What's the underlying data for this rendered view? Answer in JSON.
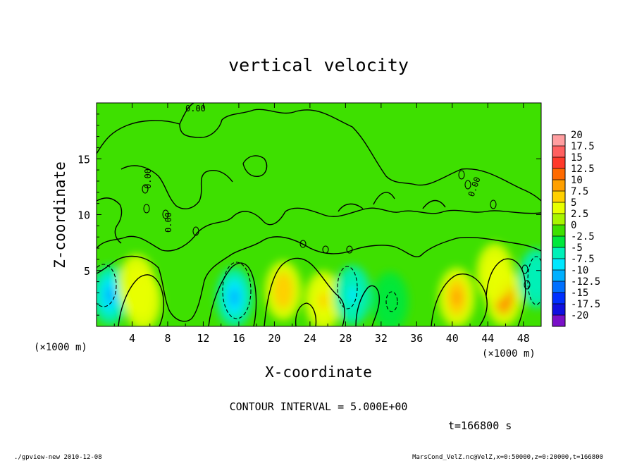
{
  "title": "vertical velocity",
  "chart_data": {
    "type": "heatmap",
    "title": "vertical velocity",
    "xlabel": "X-coordinate",
    "ylabel": "Z-coordinate",
    "x_unit": "(×1000 m)",
    "z_unit": "(×1000 m)",
    "xlim": [
      0,
      50
    ],
    "ylim": [
      0,
      20
    ],
    "x_ticks": [
      "4",
      "8",
      "12",
      "16",
      "20",
      "24",
      "28",
      "32",
      "36",
      "40",
      "44",
      "48"
    ],
    "y_ticks": [
      "5",
      "10",
      "15"
    ],
    "colorbar": {
      "labels": [
        "20",
        "17.5",
        "15",
        "12.5",
        "10",
        "7.5",
        "5",
        "2.5",
        "0",
        "-2.5",
        "-5",
        "-7.5",
        "-10",
        "-12.5",
        "-15",
        "-17.5",
        "-20"
      ],
      "colors": [
        "#ff9ea0",
        "#ff6060",
        "#ff3a2a",
        "#ff6a00",
        "#ffa000",
        "#ffd000",
        "#e8ff00",
        "#a8f500",
        "#3ee000",
        "#00e83c",
        "#00f0b8",
        "#00e8ff",
        "#00b0ff",
        "#0070ff",
        "#0030ff",
        "#1010e0",
        "#7a10c8"
      ]
    },
    "contour_interval_label": "CONTOUR INTERVAL = 5.000E+00",
    "contour_labels": [
      "0.00",
      "0.00",
      "0.00",
      "0.00"
    ],
    "features": [
      {
        "x": 1.5,
        "z": 2.8,
        "value": -12,
        "kind": "downdraft"
      },
      {
        "x": 4.5,
        "z": 3.8,
        "value": 6,
        "kind": "updraft"
      },
      {
        "x": 5.2,
        "z": 2.3,
        "value": 5,
        "kind": "updraft"
      },
      {
        "x": 15.5,
        "z": 2.6,
        "value": -10,
        "kind": "downdraft"
      },
      {
        "x": 21,
        "z": 3.2,
        "value": 7,
        "kind": "updraft"
      },
      {
        "x": 25.5,
        "z": 2.3,
        "value": 6,
        "kind": "updraft"
      },
      {
        "x": 28.8,
        "z": 2.8,
        "value": -9,
        "kind": "downdraft"
      },
      {
        "x": 33,
        "z": 2.2,
        "value": -4,
        "kind": "downdraft"
      },
      {
        "x": 40.5,
        "z": 2.6,
        "value": 8,
        "kind": "updraft"
      },
      {
        "x": 45.8,
        "z": 2.7,
        "value": 11,
        "kind": "updraft"
      },
      {
        "x": 44.8,
        "z": 4.8,
        "value": 5,
        "kind": "updraft"
      },
      {
        "x": 49.5,
        "z": 4.3,
        "value": -7,
        "kind": "downdraft"
      }
    ]
  },
  "time_label": "t=166800 s",
  "footer_left": "./gpview-new  2010-12-08",
  "footer_right": "MarsCond_VelZ.nc@VelZ,x=0:50000,z=0:20000,t=166800"
}
